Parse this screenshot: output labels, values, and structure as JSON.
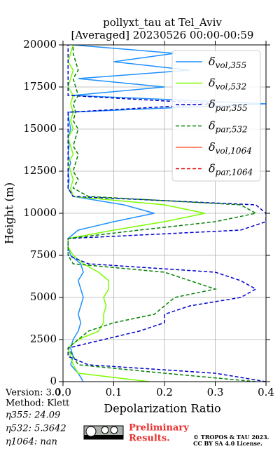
{
  "chart_data": {
    "type": "line",
    "orientation": "vertical",
    "title": [
      "pollyxt_tau at Tel_Aviv",
      "[Averaged] 20230526 00:00-00:59"
    ],
    "xlabel": "Depolarization Ratio",
    "ylabel": "Height (m)",
    "xlim": [
      0,
      0.4
    ],
    "xticks": [
      {
        "value": 0,
        "label": "0.0"
      },
      0.1,
      0.2,
      0.3,
      0.4
    ],
    "ylim": [
      0,
      20000
    ],
    "yticks": [
      0,
      2500,
      5000,
      7500,
      10000,
      12500,
      15000,
      17500,
      20000
    ],
    "grid": true,
    "legend": "upper right",
    "heights": [
      0,
      500,
      1000,
      1500,
      2000,
      2500,
      3000,
      3500,
      4000,
      4500,
      5000,
      5500,
      6000,
      6500,
      7000,
      7500,
      8000,
      8500,
      9000,
      9500,
      10000,
      10500,
      11000,
      11500,
      12000,
      12500,
      13000,
      13500,
      14000,
      14500,
      15000,
      15500,
      16000,
      16500,
      17000,
      17500,
      18000,
      18500,
      19000,
      19500,
      20000
    ],
    "series": [
      {
        "name": "δvol,355",
        "color": "#1e90ff",
        "linestyle": "solid",
        "values": [
          0.04,
          0.03,
          0.015,
          0.02,
          0.015,
          0.02,
          0.03,
          0.035,
          0.03,
          0.035,
          0.04,
          0.035,
          0.03,
          0.04,
          0.035,
          0.015,
          0.01,
          0.01,
          0.03,
          0.1,
          0.18,
          0.12,
          0.02,
          0.01,
          0.012,
          0.01,
          0.015,
          0.01,
          0.012,
          0.01,
          0.015,
          0.012,
          0.01,
          0.4,
          0.02,
          0.2,
          0.03,
          0.25,
          0.1,
          0.22,
          0.02
        ]
      },
      {
        "name": "δvol,532",
        "color": "#7cfc00",
        "linestyle": "solid",
        "values": [
          0.17,
          0.03,
          0.02,
          0.015,
          0.01,
          0.03,
          0.07,
          0.08,
          0.08,
          0.085,
          0.08,
          0.09,
          0.09,
          0.07,
          0.04,
          0.02,
          0.01,
          0.01,
          0.1,
          0.2,
          0.28,
          0.2,
          0.02,
          0.015,
          0.02,
          0.015,
          0.01,
          0.02,
          0.015,
          0.01,
          0.02,
          0.015,
          0.02,
          0.015,
          0.02,
          0.01,
          0.015,
          0.02,
          0.01,
          0.015,
          0.02
        ]
      },
      {
        "name": "δpar,355",
        "color": "#0000cd",
        "linestyle": "dashed",
        "values": [
          0.4,
          0.3,
          0.05,
          0.01,
          0.01,
          0.08,
          0.15,
          0.2,
          0.2,
          0.25,
          0.35,
          0.38,
          0.35,
          0.3,
          0.05,
          0.01,
          0.01,
          0.01,
          0.35,
          0.4,
          0.4,
          0.38,
          0.02,
          0.01,
          0.01,
          0.01,
          0.01,
          0.01,
          0.01,
          0.01,
          0.01,
          0.01,
          0.01,
          0.3,
          0.01,
          0.01,
          0.01,
          0.01,
          0.01,
          0.01,
          0.01
        ]
      },
      {
        "name": "δpar,532",
        "color": "#008000",
        "linestyle": "dashed",
        "values": [
          0.38,
          0.2,
          0.03,
          0.02,
          0.01,
          0.03,
          0.05,
          0.1,
          0.18,
          0.2,
          0.22,
          0.3,
          0.25,
          0.2,
          0.02,
          0.01,
          0.01,
          0.01,
          0.15,
          0.3,
          0.38,
          0.35,
          0.05,
          0.02,
          0.03,
          0.02,
          0.025,
          0.03,
          0.02,
          0.025,
          0.03,
          0.02,
          0.025,
          0.02,
          0.03,
          0.025,
          0.02,
          0.03,
          0.025,
          0.02,
          0.02
        ]
      },
      {
        "name": "δvol,1064",
        "color": "#ff6347",
        "linestyle": "solid",
        "values": [
          null,
          null,
          null,
          null,
          null,
          null,
          null,
          null,
          null,
          null,
          null,
          null,
          null,
          null,
          null,
          null,
          null,
          null,
          null,
          null,
          null,
          null,
          null,
          null,
          null,
          null,
          null,
          null,
          null,
          null,
          null,
          null,
          null,
          null,
          null,
          null,
          null,
          null,
          null,
          null,
          null
        ]
      },
      {
        "name": "δpar,1064",
        "color": "#dc0000",
        "linestyle": "dashed",
        "values": [
          null,
          null,
          null,
          null,
          null,
          null,
          null,
          null,
          null,
          null,
          null,
          null,
          null,
          null,
          null,
          null,
          null,
          null,
          null,
          null,
          null,
          null,
          null,
          null,
          null,
          null,
          null,
          null,
          null,
          null,
          null,
          null,
          null,
          null,
          null,
          null,
          null,
          null,
          null,
          null,
          null
        ]
      }
    ],
    "annotations": [
      "Version: 3.0",
      "Method: Klett",
      "η355:  24.09",
      "η532: 5.3642",
      "η1064:    nan"
    ],
    "notice": [
      "Preliminary",
      "Results."
    ],
    "copyright": [
      "© TROPOS & TAU 2023.",
      "CC BY SA 4.0 License."
    ]
  }
}
